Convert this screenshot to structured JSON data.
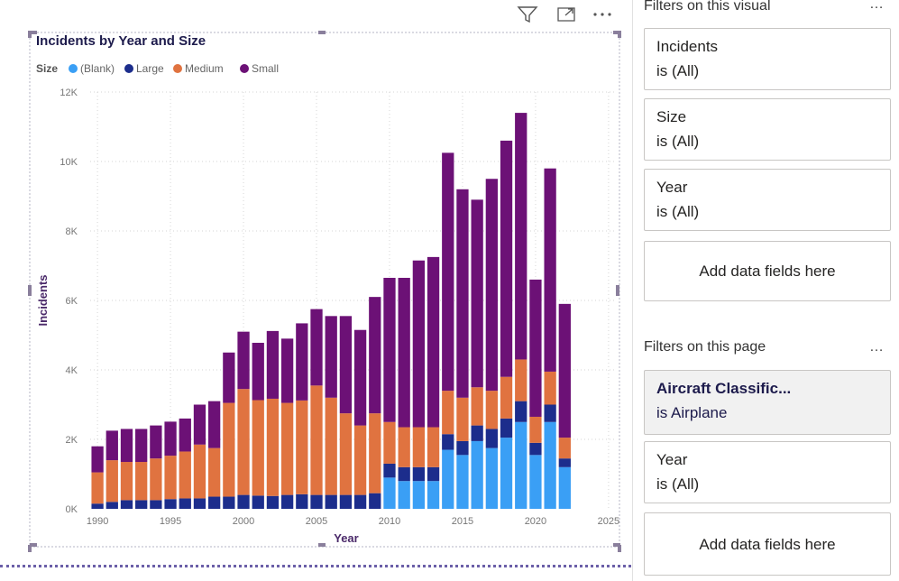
{
  "visual_header": {
    "icons": [
      "filter-icon",
      "focus-mode-icon",
      "more-options-icon"
    ],
    "more_label": "···"
  },
  "filters_pane": {
    "visual_section": {
      "title": "Filters on this visual",
      "more_label": "…",
      "cards": [
        {
          "name": "Incidents",
          "value": "is (All)"
        },
        {
          "name": "Size",
          "value": "is (All)"
        },
        {
          "name": "Year",
          "value": "is (All)"
        }
      ],
      "add_label": "Add data fields here"
    },
    "page_section": {
      "title": "Filters on this page",
      "more_label": "…",
      "cards": [
        {
          "name": "Aircraft Classific...",
          "value": "is Airplane",
          "active": true
        },
        {
          "name": "Year",
          "value": "is (All)"
        }
      ],
      "add_label": "Add data fields here"
    }
  },
  "chart_data": {
    "type": "bar",
    "stacked": true,
    "title": "Incidents by Year and Size",
    "xlabel": "Year",
    "ylabel": "Incidents",
    "legend_title": "Size",
    "legend_position": "top-left",
    "grid": true,
    "ylim": [
      0,
      12000
    ],
    "y_ticks": [
      0,
      2000,
      4000,
      6000,
      8000,
      10000,
      12000
    ],
    "y_tick_labels": [
      "0K",
      "2K",
      "4K",
      "6K",
      "8K",
      "10K",
      "12K"
    ],
    "xlim": [
      1989.5,
      2025.5
    ],
    "x_ticks": [
      1990,
      1995,
      2000,
      2005,
      2010,
      2015,
      2020,
      2025
    ],
    "x_tick_labels": [
      "1990",
      "1995",
      "2000",
      "2005",
      "2010",
      "2015",
      "2020",
      "2025"
    ],
    "colors": {
      "(Blank)": "#3a9ff5",
      "Large": "#1c2d8c",
      "Medium": "#e07340",
      "Small": "#6c1176"
    },
    "x": [
      1990,
      1991,
      1992,
      1993,
      1994,
      1995,
      1996,
      1997,
      1998,
      1999,
      2000,
      2001,
      2002,
      2003,
      2004,
      2005,
      2006,
      2007,
      2008,
      2009,
      2010,
      2011,
      2012,
      2013,
      2014,
      2015,
      2016,
      2017,
      2018,
      2019,
      2020,
      2021,
      2022
    ],
    "series": [
      {
        "name": "(Blank)",
        "values": [
          0,
          0,
          0,
          0,
          0,
          0,
          0,
          0,
          0,
          0,
          0,
          0,
          0,
          0,
          0,
          0,
          0,
          0,
          0,
          0,
          900,
          800,
          800,
          800,
          1700,
          1550,
          1950,
          1750,
          2050,
          2500,
          1550,
          2500,
          1200
        ]
      },
      {
        "name": "Large",
        "values": [
          150,
          200,
          250,
          250,
          250,
          280,
          300,
          300,
          350,
          350,
          400,
          380,
          370,
          400,
          420,
          400,
          400,
          400,
          400,
          450,
          400,
          400,
          400,
          400,
          450,
          400,
          450,
          550,
          550,
          600,
          350,
          500,
          250
        ]
      },
      {
        "name": "Medium",
        "values": [
          900,
          1200,
          1100,
          1100,
          1200,
          1250,
          1350,
          1550,
          1400,
          2700,
          3050,
          2750,
          2800,
          2650,
          2700,
          3150,
          2800,
          2350,
          2000,
          2300,
          1200,
          1150,
          1150,
          1150,
          1250,
          1250,
          1100,
          1100,
          1200,
          1200,
          750,
          950,
          600
        ]
      },
      {
        "name": "Small",
        "values": [
          750,
          850,
          950,
          950,
          950,
          980,
          950,
          1150,
          1350,
          1450,
          1650,
          1650,
          1950,
          1850,
          2220,
          2200,
          2350,
          2800,
          2750,
          3350,
          4150,
          4300,
          4800,
          4900,
          6850,
          6000,
          5400,
          6100,
          6800,
          7100,
          3950,
          5850,
          3850
        ]
      }
    ]
  }
}
